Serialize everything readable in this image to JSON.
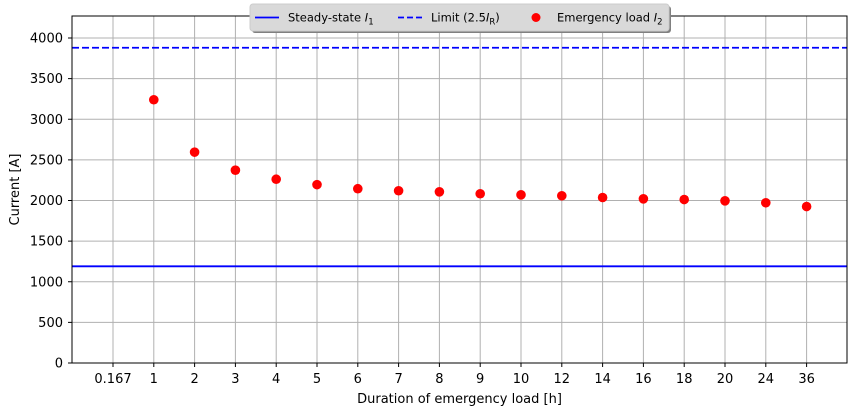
{
  "chart_data": {
    "type": "scatter",
    "title": "",
    "xlabel": "Duration of emergency load [h]",
    "ylabel": "Current [A]",
    "categories": [
      "0.167",
      "1",
      "2",
      "3",
      "4",
      "5",
      "6",
      "7",
      "8",
      "9",
      "10",
      "12",
      "14",
      "16",
      "18",
      "20",
      "24",
      "36"
    ],
    "ylim": [
      0,
      4280
    ],
    "yticks": [
      0,
      500,
      1000,
      1500,
      2000,
      2500,
      3000,
      3500,
      4000
    ],
    "grid": true,
    "legend_position": "top-center",
    "series": [
      {
        "name": "Steady-state I1",
        "label_main": "Steady-state ",
        "label_sym": "I",
        "label_sub": "1",
        "kind": "hline",
        "style": "solid",
        "color": "#0000ff",
        "value": 1190
      },
      {
        "name": "Limit (2.5IR)",
        "label_main": "Limit (2.5",
        "label_sym": "I",
        "label_sub": "R",
        "label_tail": ")",
        "kind": "hline",
        "style": "dashed",
        "color": "#0000ff",
        "value": 3880
      },
      {
        "name": "Emergency load I2",
        "label_main": "Emergency load ",
        "label_sym": "I",
        "label_sub": "2",
        "kind": "scatter",
        "color": "#ff0000",
        "x": [
          "1",
          "2",
          "3",
          "4",
          "5",
          "6",
          "7",
          "8",
          "9",
          "10",
          "12",
          "14",
          "16",
          "18",
          "20",
          "24",
          "36"
        ],
        "values": [
          3240,
          2595,
          2373,
          2262,
          2195,
          2145,
          2120,
          2107,
          2083,
          2070,
          2058,
          2037,
          2021,
          2012,
          1996,
          1972,
          1926
        ]
      }
    ]
  }
}
